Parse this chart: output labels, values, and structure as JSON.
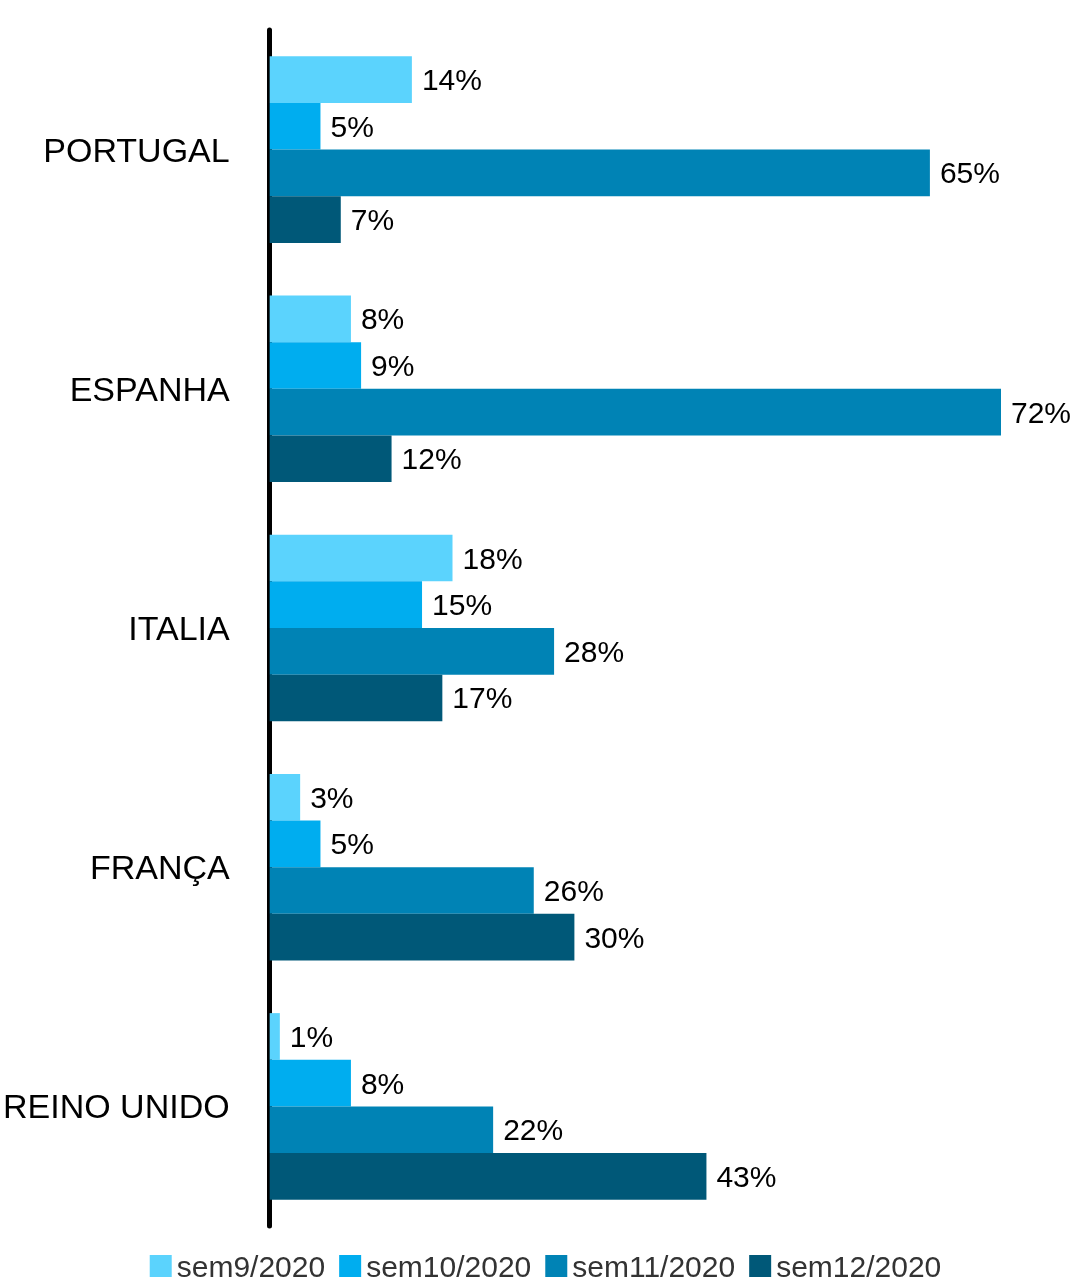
{
  "chart_data": {
    "type": "bar",
    "orientation": "horizontal",
    "categories": [
      "PORTUGAL",
      "ESPANHA",
      "ITALIA",
      "FRANÇA",
      "REINO UNIDO"
    ],
    "series": [
      {
        "name": "sem9/2020",
        "color": "#5bd3fd",
        "values": [
          14,
          8,
          18,
          3,
          1
        ],
        "value_labels": [
          "14%",
          "8%",
          "18%",
          "3%",
          "1%"
        ]
      },
      {
        "name": "sem10/2020",
        "color": "#00adef",
        "values": [
          5,
          9,
          15,
          5,
          8
        ],
        "value_labels": [
          "5%",
          "9%",
          "15%",
          "5%",
          "8%"
        ]
      },
      {
        "name": "sem11/2020",
        "color": "#0083b5",
        "values": [
          65,
          72,
          28,
          26,
          22
        ],
        "value_labels": [
          "65%",
          "72%",
          "28%",
          "26%",
          "22%"
        ]
      },
      {
        "name": "sem12/2020",
        "color": "#005878",
        "values": [
          7,
          12,
          17,
          30,
          43
        ],
        "value_labels": [
          "7%",
          "12%",
          "17%",
          "30%",
          "43%"
        ]
      }
    ],
    "legend": "bottom",
    "grid": false
  }
}
